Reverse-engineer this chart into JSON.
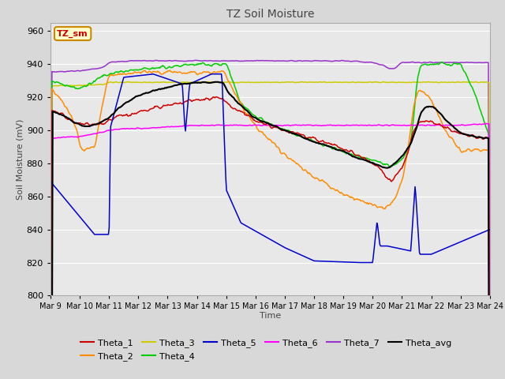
{
  "title": "TZ Soil Moisture",
  "xlabel": "Time",
  "ylabel": "Soil Moisture (mV)",
  "ylim": [
    800,
    965
  ],
  "yticks": [
    800,
    820,
    840,
    860,
    880,
    900,
    920,
    940,
    960
  ],
  "fig_facecolor": "#d8d8d8",
  "plot_facecolor": "#e8e8e8",
  "grid_color": "#ffffff",
  "colors": {
    "Theta_1": "#cc0000",
    "Theta_2": "#ff8c00",
    "Theta_3": "#cccc00",
    "Theta_4": "#00cc00",
    "Theta_5": "#0000cc",
    "Theta_6": "#ff00ff",
    "Theta_7": "#9933cc",
    "Theta_avg": "#000000"
  },
  "legend_box_facecolor": "#ffffcc",
  "legend_box_edgecolor": "#cc8800",
  "legend_box_textcolor": "#cc0000",
  "legend_box_label": "TZ_sm",
  "xtick_labels": [
    "Mar 9",
    "Mar 10",
    "Mar 11",
    "Mar 12",
    "Mar 13",
    "Mar 14",
    "Mar 15",
    "Mar 16",
    "Mar 17",
    "Mar 18",
    "Mar 19",
    "Mar 20",
    "Mar 21",
    "Mar 22",
    "Mar 23",
    "Mar 24"
  ],
  "xlim": [
    9,
    24
  ]
}
